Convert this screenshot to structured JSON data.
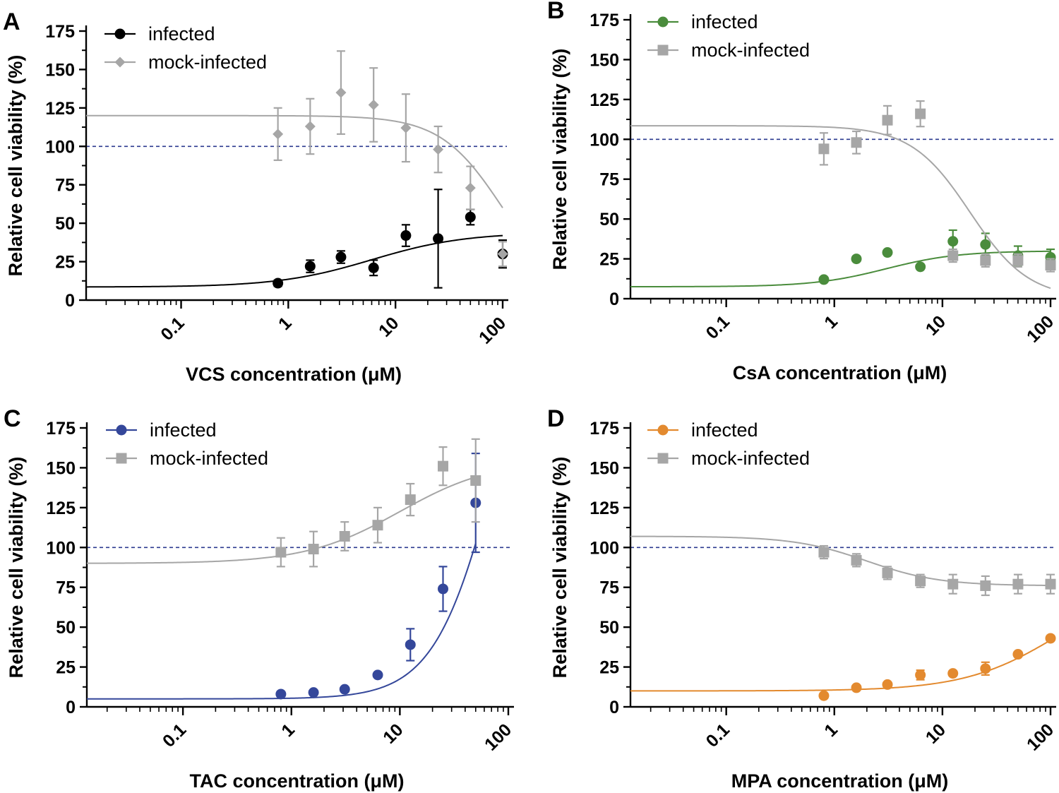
{
  "figure": {
    "y_axis_label": "Relative cell viability (%)",
    "reference_line": 100,
    "reference_color": "#2b3a8f",
    "axis_color": "#000000"
  },
  "chart_data": [
    {
      "panel": "A",
      "type": "scatter",
      "xscale": "log",
      "xlim": [
        0.013,
        100
      ],
      "ylim": [
        0,
        175
      ],
      "xticks": [
        0.1,
        1,
        10,
        100
      ],
      "xtick_labels": [
        "0.1",
        "1",
        "10",
        "100"
      ],
      "yticks": [
        0,
        25,
        50,
        75,
        100,
        125,
        150,
        175
      ],
      "ytick_labels": [
        "0",
        "25",
        "50",
        "75",
        "100",
        "125",
        "150",
        "175"
      ],
      "xlabel": "VCS concentration (μM)",
      "ylabel": "Relative cell viability (%)",
      "legend_position": "top-left",
      "series": [
        {
          "name": "infected",
          "color": "#000000",
          "marker": "circle",
          "x": [
            0.8,
            1.6,
            3.1,
            6.25,
            12.5,
            25,
            50,
            100
          ],
          "y": [
            11,
            22,
            28,
            21,
            42,
            40,
            54,
            30
          ],
          "err": [
            2,
            4,
            4,
            5,
            7,
            32,
            5,
            9
          ],
          "fit": {
            "bottom": 8.5,
            "top": 44,
            "ec50": 6,
            "hill": 1
          }
        },
        {
          "name": "mock-infected",
          "color": "#a6a6a6",
          "marker": "diamond",
          "x": [
            0.8,
            1.6,
            3.1,
            6.25,
            12.5,
            25,
            50,
            100
          ],
          "y": [
            108,
            113,
            135,
            127,
            112,
            98,
            73,
            30
          ],
          "err": [
            17,
            18,
            27,
            24,
            22,
            15,
            14,
            8
          ],
          "fit": {
            "bottom": 0,
            "top": 120,
            "ec50": 100,
            "hill": -1.5
          }
        }
      ]
    },
    {
      "panel": "B",
      "type": "scatter",
      "xscale": "log",
      "xlim": [
        0.013,
        100
      ],
      "ylim": [
        0,
        175
      ],
      "xticks": [
        0.1,
        1,
        10,
        100
      ],
      "xtick_labels": [
        "0.1",
        "1",
        "10",
        "100"
      ],
      "yticks": [
        0,
        25,
        50,
        75,
        100,
        125,
        150,
        175
      ],
      "ytick_labels": [
        "0",
        "25",
        "50",
        "75",
        "100",
        "125",
        "150",
        "175"
      ],
      "xlabel": "CsA concentration (μM)",
      "ylabel": "Relative cell viability (%)",
      "legend_position": "top-left",
      "series": [
        {
          "name": "infected",
          "color": "#4a8c3c",
          "marker": "circle",
          "x": [
            0.8,
            1.6,
            3.1,
            6.25,
            12.5,
            25,
            50,
            100
          ],
          "y": [
            12,
            25,
            29,
            20,
            36,
            34,
            27,
            26
          ],
          "err": [
            0,
            0,
            0,
            0,
            7,
            7,
            6,
            5
          ],
          "fit": {
            "bottom": 7.5,
            "top": 30,
            "ec50": 3,
            "hill": 1.3
          }
        },
        {
          "name": "mock-infected",
          "color": "#a6a6a6",
          "marker": "square",
          "x": [
            0.8,
            1.6,
            3.1,
            6.25,
            12.5,
            25,
            50,
            100
          ],
          "y": [
            94,
            98,
            112,
            116,
            27,
            24,
            24,
            21
          ],
          "err": [
            10,
            7,
            9,
            8,
            4,
            4,
            4,
            4
          ],
          "fit": {
            "bottom": 0,
            "top": 108.5,
            "ec50": 18,
            "hill": -1.6
          }
        }
      ]
    },
    {
      "panel": "C",
      "type": "scatter",
      "xscale": "log",
      "xlim": [
        0.013,
        100
      ],
      "ylim": [
        0,
        175
      ],
      "xticks": [
        0.1,
        1,
        10,
        100
      ],
      "xtick_labels": [
        "0.1",
        "1",
        "10",
        "100"
      ],
      "yticks": [
        0,
        25,
        50,
        75,
        100,
        125,
        150,
        175
      ],
      "ytick_labels": [
        "0",
        "25",
        "50",
        "75",
        "100",
        "125",
        "150",
        "175"
      ],
      "xlabel": "TAC concentration (μM)",
      "ylabel": "Relative cell viability (%)",
      "legend_position": "top-left",
      "series": [
        {
          "name": "infected",
          "color": "#34479a",
          "marker": "circle",
          "x": [
            0.8,
            1.6,
            3.1,
            6.25,
            12.5,
            25,
            50
          ],
          "y": [
            8,
            9,
            11,
            20,
            39,
            74,
            128
          ],
          "err": [
            0,
            0,
            0,
            0,
            10,
            14,
            31
          ],
          "fit": {
            "bottom": 5,
            "top": 300,
            "ec50": 80,
            "hill": 1.5
          }
        },
        {
          "name": "mock-infected",
          "color": "#a6a6a6",
          "marker": "square",
          "x": [
            0.8,
            1.6,
            3.1,
            6.25,
            12.5,
            25,
            50
          ],
          "y": [
            97,
            99,
            107,
            114,
            130,
            151,
            142
          ],
          "err": [
            9,
            11,
            9,
            11,
            10,
            12,
            26
          ],
          "fit": {
            "bottom": 90,
            "top": 155,
            "ec50": 10,
            "hill": 1
          }
        }
      ]
    },
    {
      "panel": "D",
      "type": "scatter",
      "xscale": "log",
      "xlim": [
        0.013,
        100
      ],
      "ylim": [
        0,
        175
      ],
      "xticks": [
        0.1,
        1,
        10,
        100
      ],
      "xtick_labels": [
        "0.1",
        "1",
        "10",
        "100"
      ],
      "yticks": [
        0,
        25,
        50,
        75,
        100,
        125,
        150,
        175
      ],
      "ytick_labels": [
        "0",
        "25",
        "50",
        "75",
        "100",
        "125",
        "150",
        "175"
      ],
      "xlabel": "MPA concentration (μM)",
      "ylabel": "Relative cell viability (%)",
      "legend_position": "top-left",
      "series": [
        {
          "name": "infected",
          "color": "#e38a2f",
          "marker": "circle",
          "x": [
            0.8,
            1.6,
            3.1,
            6.25,
            12.5,
            25,
            50,
            100
          ],
          "y": [
            7,
            12,
            14,
            20,
            21,
            24,
            33,
            43
          ],
          "err": [
            0,
            0,
            0,
            3,
            0,
            4,
            0,
            0
          ],
          "fit": {
            "bottom": 10,
            "top": 80,
            "ec50": 120,
            "hill": 1
          }
        },
        {
          "name": "mock-infected",
          "color": "#a6a6a6",
          "marker": "square",
          "x": [
            0.8,
            1.6,
            3.1,
            6.25,
            12.5,
            25,
            50,
            100
          ],
          "y": [
            97,
            92,
            84,
            79,
            77,
            76,
            77,
            77
          ],
          "err": [
            4,
            4,
            4,
            4,
            6,
            6,
            6,
            6
          ],
          "fit": {
            "bottom": 76,
            "top": 107,
            "ec50": 2,
            "hill": -1.3
          }
        }
      ]
    }
  ]
}
